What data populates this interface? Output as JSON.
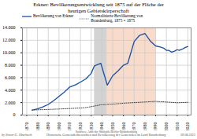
{
  "chart_data": {
    "type": "line",
    "title": "Erkner: Bevölkerungsentwicklung seit 1875 auf der Fläche der\nheutigen Gebietskörperschaft",
    "xlim": [
      1866,
      2023
    ],
    "xticks": [
      1870,
      1880,
      1890,
      1900,
      1910,
      1920,
      1930,
      1940,
      1950,
      1960,
      1970,
      1980,
      1990,
      2000,
      2010,
      2020
    ],
    "ylim": [
      0,
      14000
    ],
    "yticks": [
      0,
      {
        "value": 2000,
        "label": "2.000"
      },
      {
        "value": 4000,
        "label": "4.000"
      },
      {
        "value": 6000,
        "label": "6.000"
      },
      {
        "value": 8000,
        "label": "8.000"
      },
      {
        "value": 10000,
        "label": "10.000"
      },
      {
        "value": 12000,
        "label": "12.000"
      },
      {
        "value": 14000,
        "label": "14.000"
      }
    ],
    "grid": true,
    "legend": "upper left",
    "spans": [
      {
        "x": [
          1933,
          1945
        ],
        "color": "#bbbbbb"
      },
      {
        "x": [
          1945,
          1990
        ],
        "color": "#f5c8ae"
      }
    ],
    "series": [
      {
        "name": "Bevölkerung von Erkner",
        "color": "#1b4fa3",
        "line_style": "solid",
        "x": [
          1875,
          1880,
          1885,
          1890,
          1895,
          1900,
          1905,
          1910,
          1916,
          1920,
          1925,
          1930,
          1933,
          1939,
          1945,
          1950,
          1955,
          1960,
          1964,
          1970,
          1975,
          1980,
          1985,
          1990,
          1995,
          1998,
          2000,
          2002,
          2005,
          2008,
          2010,
          2012,
          2015,
          2018,
          2020
        ],
        "values": [
          800,
          1000,
          1300,
          1700,
          2300,
          3000,
          3700,
          4500,
          4900,
          5300,
          5800,
          6700,
          7900,
          8300,
          4800,
          6300,
          7100,
          8000,
          8300,
          11800,
          12800,
          13100,
          11900,
          11100,
          10900,
          10700,
          10400,
          10400,
          10100,
          10300,
          10500,
          10400,
          10600,
          10900,
          11000
        ]
      },
      {
        "name": "Normalisierte Bevölkerung von\nBrandenburg, 1875 = 1875",
        "color": "#444444",
        "line_style": "dotted",
        "x": [
          1875,
          1880,
          1890,
          1900,
          1910,
          1920,
          1925,
          1930,
          1933,
          1939,
          1945,
          1950,
          1960,
          1970,
          1980,
          1990,
          2000,
          2010,
          2020
        ],
        "values": [
          800,
          840,
          900,
          970,
          1050,
          1130,
          1200,
          1350,
          1450,
          1650,
          1700,
          1750,
          1900,
          2000,
          2100,
          2200,
          2100,
          1980,
          2050
        ]
      }
    ],
    "annotations": [
      "by Simon G. Oberbach",
      "Sources: Amt für Statistik Berlin-Brandenburg\nHistorische Gemeindeübersichten und Bevölkerung der Gemeinden im Land Brandenburg",
      "09.08.2022"
    ]
  }
}
